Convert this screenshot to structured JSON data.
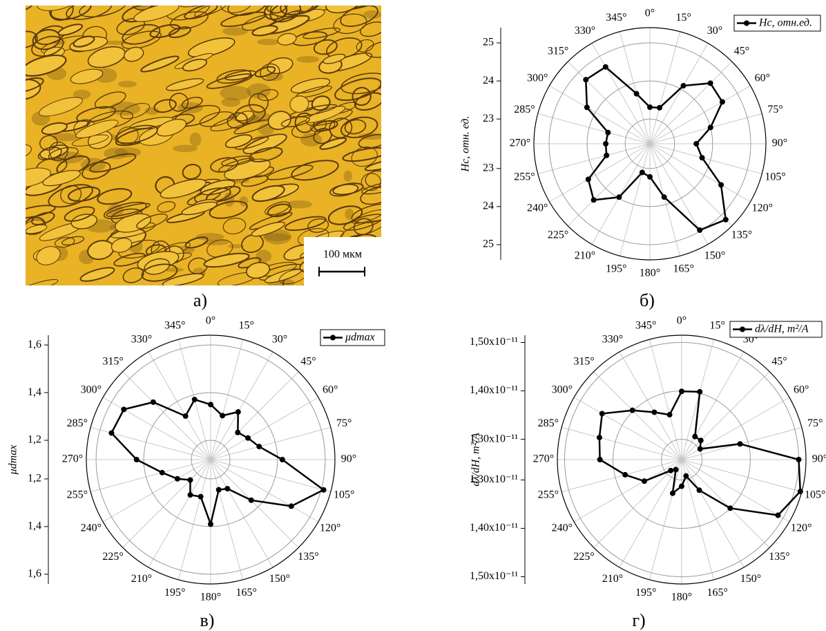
{
  "image_panel": {
    "scale_bar": "100 мкм",
    "caption": "а)"
  },
  "chart_data": [
    {
      "type": "polar",
      "caption": "б)",
      "y_label": "Hc, отн. ед.",
      "rlim": [
        22.35,
        25.4
      ],
      "rticks": [
        23,
        24,
        25
      ],
      "thetaticks": [
        {
          "value": 0,
          "label": "0°"
        },
        {
          "value": 15,
          "label": "15°"
        },
        {
          "value": 30,
          "label": "30°"
        },
        {
          "value": 45,
          "label": "45°"
        },
        {
          "value": 60,
          "label": "60°"
        },
        {
          "value": 75,
          "label": "75°"
        },
        {
          "value": 90,
          "label": "90°"
        },
        {
          "value": 105,
          "label": "105°"
        },
        {
          "value": 120,
          "label": "120°"
        },
        {
          "value": 135,
          "label": "135°"
        },
        {
          "value": 150,
          "label": "150°"
        },
        {
          "value": 165,
          "label": "165°"
        },
        {
          "value": 180,
          "label": "180°"
        },
        {
          "value": 195,
          "label": "195°"
        },
        {
          "value": 210,
          "label": "210°"
        },
        {
          "value": 225,
          "label": "225°"
        },
        {
          "value": 240,
          "label": "240°"
        },
        {
          "value": 255,
          "label": "255°"
        },
        {
          "value": 270,
          "label": "270°"
        },
        {
          "value": 285,
          "label": "285°"
        },
        {
          "value": 300,
          "label": "300°"
        },
        {
          "value": 315,
          "label": "315°"
        },
        {
          "value": 330,
          "label": "330°"
        },
        {
          "value": 345,
          "label": "345°"
        }
      ],
      "theta": [
        0,
        15,
        30,
        45,
        60,
        75,
        90,
        105,
        120,
        135,
        150,
        165,
        180,
        195,
        210,
        225,
        240,
        255,
        270,
        285,
        300,
        315,
        330,
        345
      ],
      "series": [
        {
          "name": "Hc, отн.ед.",
          "color": "#000000",
          "values": [
            23.31,
            23.33,
            24.11,
            24.6,
            24.55,
            24.0,
            23.57,
            23.77,
            24.51,
            25.17,
            24.97,
            23.8,
            23.22,
            23.13,
            23.97,
            24.44,
            24.22,
            23.53,
            23.51,
            23.49,
            24.26,
            24.73,
            24.68,
            23.71
          ]
        }
      ],
      "grid": true
    },
    {
      "type": "polar",
      "caption": "в)",
      "y_label": "μdmax",
      "rlim": [
        1.119,
        1.641
      ],
      "rticks": [
        {
          "value": 1.2,
          "label": "1,2"
        },
        {
          "value": 1.4,
          "label": "1,4"
        },
        {
          "value": 1.6,
          "label": "1,6"
        }
      ],
      "thetaticks": [
        {
          "value": 0,
          "label": "0°"
        },
        {
          "value": 15,
          "label": "15°"
        },
        {
          "value": 30,
          "label": "30°"
        },
        {
          "value": 45,
          "label": "45°"
        },
        {
          "value": 60,
          "label": "60°"
        },
        {
          "value": 75,
          "label": "75°"
        },
        {
          "value": 90,
          "label": "90°"
        },
        {
          "value": 105,
          "label": "105°"
        },
        {
          "value": 120,
          "label": "120°"
        },
        {
          "value": 135,
          "label": "135°"
        },
        {
          "value": 150,
          "label": "150°"
        },
        {
          "value": 165,
          "label": "165°"
        },
        {
          "value": 180,
          "label": "180°"
        },
        {
          "value": 195,
          "label": "195°"
        },
        {
          "value": 210,
          "label": "210°"
        },
        {
          "value": 225,
          "label": "225°"
        },
        {
          "value": 240,
          "label": "240°"
        },
        {
          "value": 255,
          "label": "255°"
        },
        {
          "value": 270,
          "label": "270°"
        },
        {
          "value": 285,
          "label": "285°"
        },
        {
          "value": 300,
          "label": "300°"
        },
        {
          "value": 315,
          "label": "315°"
        },
        {
          "value": 330,
          "label": "330°"
        },
        {
          "value": 345,
          "label": "345°"
        }
      ],
      "theta": [
        0,
        15,
        30,
        45,
        60,
        75,
        90,
        105,
        120,
        135,
        150,
        165,
        180,
        195,
        210,
        225,
        240,
        255,
        270,
        285,
        300,
        315,
        330,
        345
      ],
      "series": [
        {
          "name": "μdmax",
          "color": "#000000",
          "values": [
            1.35,
            1.31,
            1.35,
            1.28,
            1.3,
            1.33,
            1.42,
            1.61,
            1.51,
            1.36,
            1.26,
            1.25,
            1.39,
            1.28,
            1.29,
            1.24,
            1.28,
            1.33,
            1.43,
            1.55,
            1.54,
            1.46,
            1.33,
            1.38
          ]
        }
      ],
      "grid": true
    },
    {
      "type": "polar",
      "caption": "г)",
      "y_label": "dλ/dH, m²/A",
      "rlim": [
        1.258e-11,
        1.515e-11
      ],
      "rticks": [
        {
          "value": 1.3e-11,
          "label": "1,30x10⁻¹¹"
        },
        {
          "value": 1.4e-11,
          "label": "1,40x10⁻¹¹"
        },
        {
          "value": 1.5e-11,
          "label": "1,50x10⁻¹¹"
        }
      ],
      "thetaticks": [
        {
          "value": 0,
          "label": "0°"
        },
        {
          "value": 15,
          "label": "15°"
        },
        {
          "value": 30,
          "label": "30°"
        },
        {
          "value": 45,
          "label": "45°"
        },
        {
          "value": 60,
          "label": "60°"
        },
        {
          "value": 75,
          "label": "75°"
        },
        {
          "value": 90,
          "label": "90°"
        },
        {
          "value": 105,
          "label": "105°"
        },
        {
          "value": 120,
          "label": "120°"
        },
        {
          "value": 135,
          "label": "135°"
        },
        {
          "value": 150,
          "label": "150°"
        },
        {
          "value": 165,
          "label": "165°"
        },
        {
          "value": 180,
          "label": "180°"
        },
        {
          "value": 195,
          "label": "195°"
        },
        {
          "value": 210,
          "label": "210°"
        },
        {
          "value": 225,
          "label": "225°"
        },
        {
          "value": 240,
          "label": "240°"
        },
        {
          "value": 255,
          "label": "255°"
        },
        {
          "value": 270,
          "label": "270°"
        },
        {
          "value": 285,
          "label": "285°"
        },
        {
          "value": 300,
          "label": "300°"
        },
        {
          "value": 315,
          "label": "315°"
        },
        {
          "value": 330,
          "label": "330°"
        },
        {
          "value": 345,
          "label": "345°"
        }
      ],
      "theta": [
        0,
        15,
        30,
        45,
        60,
        75,
        90,
        105,
        120,
        135,
        150,
        165,
        180,
        195,
        210,
        225,
        240,
        255,
        270,
        285,
        300,
        315,
        330,
        345
      ],
      "series": [
        {
          "name": "dλ/dH, m²/A",
          "color": "#000000",
          "values": [
            1.399e-11,
            1.403e-11,
            1.313e-11,
            1.314e-11,
            1.302e-11,
            1.383e-11,
            1.5e-11,
            1.512e-11,
            1.488e-11,
            1.4e-11,
            1.331e-11,
            1.293e-11,
            1.313e-11,
            1.33e-11,
            1.282e-11,
            1.29e-11,
            1.347e-11,
            1.379e-11,
            1.427e-11,
            1.434e-11,
            1.448e-11,
            1.402e-11,
            1.371e-11,
            1.354e-11
          ]
        }
      ],
      "grid": true
    }
  ]
}
